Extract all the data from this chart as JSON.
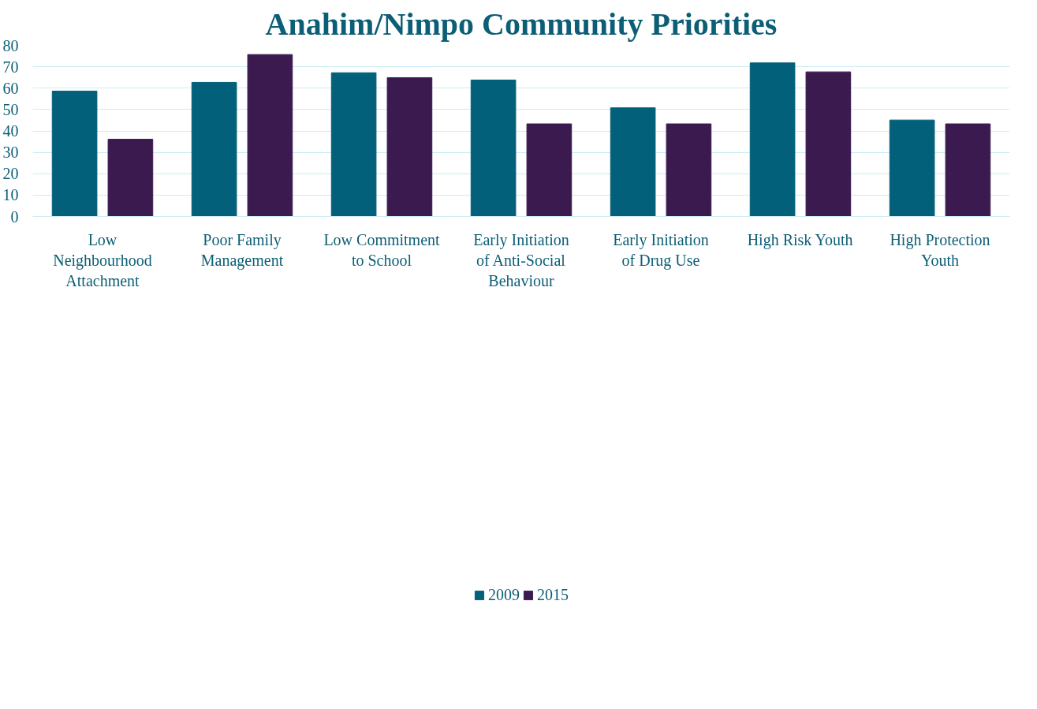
{
  "chart_data": {
    "type": "bar",
    "title": "Anahim/Nimpo Community Priorities",
    "categories": [
      "Low Neighbourhood Attachment",
      "Poor Family Management",
      "Low Commitment to School",
      "Early Initiation of Anti-Social Behaviour",
      "Early Initiation of Drug Use",
      "High Risk Youth",
      "High Protection Youth"
    ],
    "series": [
      {
        "name": "2009",
        "color": "#03607a",
        "values": [
          58.6,
          62.7,
          67.2,
          63.8,
          50.8,
          71.8,
          45.1
        ]
      },
      {
        "name": "2015",
        "color": "#3b1a50",
        "values": [
          36.1,
          75.7,
          64.9,
          43.3,
          43.3,
          67.6,
          43.3
        ]
      }
    ],
    "ylim": [
      0,
      80
    ],
    "yticks": [
      0,
      10,
      20,
      30,
      40,
      50,
      60,
      70,
      80
    ],
    "grid": "y",
    "legend": "bottom"
  }
}
